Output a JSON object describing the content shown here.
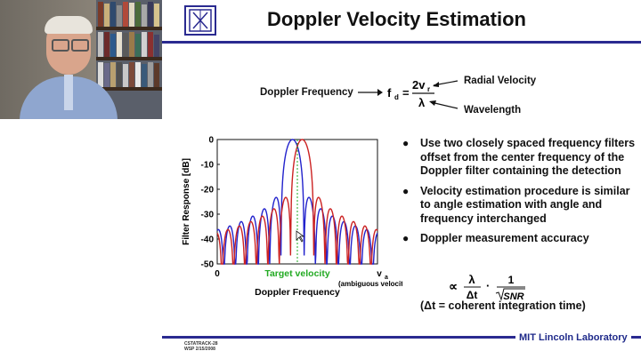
{
  "slide": {
    "title": "Doppler Velocity Estimation",
    "equation": {
      "left_label": "Doppler Frequency",
      "lhs": "f",
      "lhs_sub": "d",
      "equals": "=",
      "numerator": "2v",
      "numerator_sub": "r",
      "denominator": "λ",
      "top_label": "Radial Velocity",
      "bottom_label": "Wavelength"
    },
    "bullets": [
      "Use two closely spaced frequency filters offset from the center frequency of the Doppler filter containing the detection",
      "Velocity estimation procedure is similar to angle estimation with angle and frequency interchanged",
      "Doppler measurement accuracy"
    ],
    "accuracy": {
      "proportional": "∝",
      "numerator": "λ",
      "denominator": "Δt",
      "dot": "·",
      "one": "1",
      "snr": "SNR",
      "note": "(Δt = coherent integration time)"
    },
    "footer": {
      "lab": "MIT Lincoln Laboratory",
      "code_line1": "CSTATRACK-28",
      "code_line2": "WSP 2/15/2008"
    }
  },
  "chart_data": {
    "type": "line",
    "ylabel": "Filter Response [dB]",
    "xlabel": "Doppler Frequency",
    "ylim": [
      -50,
      0
    ],
    "yticks": [
      "0",
      "-10",
      "-20",
      "-30",
      "-40",
      "-50"
    ],
    "x_tick_left": "0",
    "x_tick_right": "v",
    "x_tick_right_sub": "a",
    "x_tick_right_note": "(ambiguous velocity)",
    "annotation": "Target velocity",
    "series": [
      {
        "color": "#2222cc",
        "offset": -0.03
      },
      {
        "color": "#cc2222",
        "offset": 0.03
      }
    ],
    "target_x": 0.5,
    "colors": {
      "target": "#22aa22"
    }
  }
}
